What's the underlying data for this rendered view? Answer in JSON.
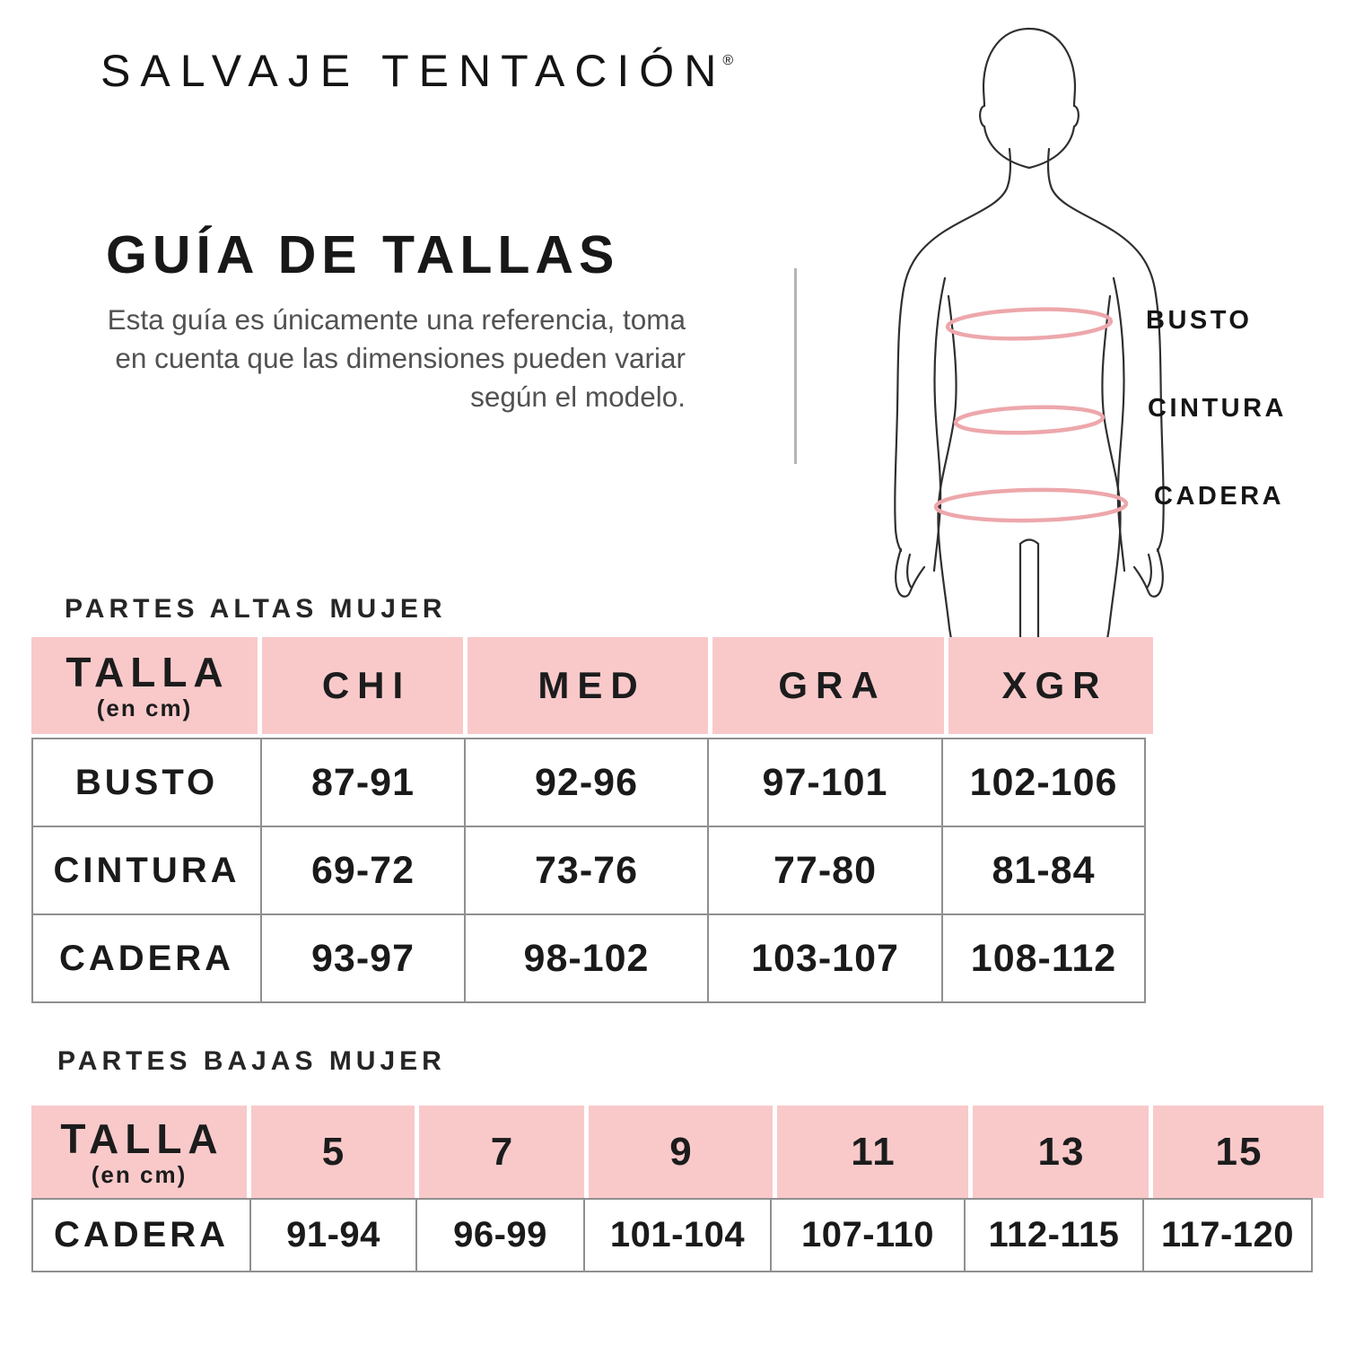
{
  "brand": {
    "name": "SALVAJE TENTACIÓN",
    "registered": "®"
  },
  "intro": {
    "title": "GUÍA DE TALLAS",
    "description": "Esta guía es únicamente una referencia, toma en cuenta que las dimensiones pueden variar según el modelo."
  },
  "figure": {
    "labels": [
      {
        "text": "BUSTO"
      },
      {
        "text": "CINTURA"
      },
      {
        "text": "CADERA"
      }
    ]
  },
  "tables": {
    "tops": {
      "heading": "PARTES ALTAS MUJER",
      "header": {
        "first": "TALLA",
        "unit": "(en cm)",
        "sizes": [
          "CHI",
          "MED",
          "GRA",
          "XGR"
        ]
      },
      "rows": [
        {
          "label": "BUSTO",
          "values": [
            "87-91",
            "92-96",
            "97-101",
            "102-106"
          ]
        },
        {
          "label": "CINTURA",
          "values": [
            "69-72",
            "73-76",
            "77-80",
            "81-84"
          ]
        },
        {
          "label": "CADERA",
          "values": [
            "93-97",
            "98-102",
            "103-107",
            "108-112"
          ]
        }
      ]
    },
    "bottoms": {
      "heading": "PARTES BAJAS MUJER",
      "header": {
        "first": "TALLA",
        "unit": "(en cm)",
        "sizes": [
          "5",
          "7",
          "9",
          "11",
          "13",
          "15"
        ]
      },
      "rows": [
        {
          "label": "CADERA",
          "values": [
            "91-94",
            "96-99",
            "101-104",
            "107-110",
            "112-115",
            "117-120"
          ]
        }
      ]
    }
  },
  "colors": {
    "header_pink": "#f9c9ca",
    "band_pink": "#eda7ab",
    "border_gray": "#8f8f8f",
    "divider_gray": "#b5b5b5",
    "text_dark": "#1a1a1a",
    "text_gray": "#525252"
  }
}
